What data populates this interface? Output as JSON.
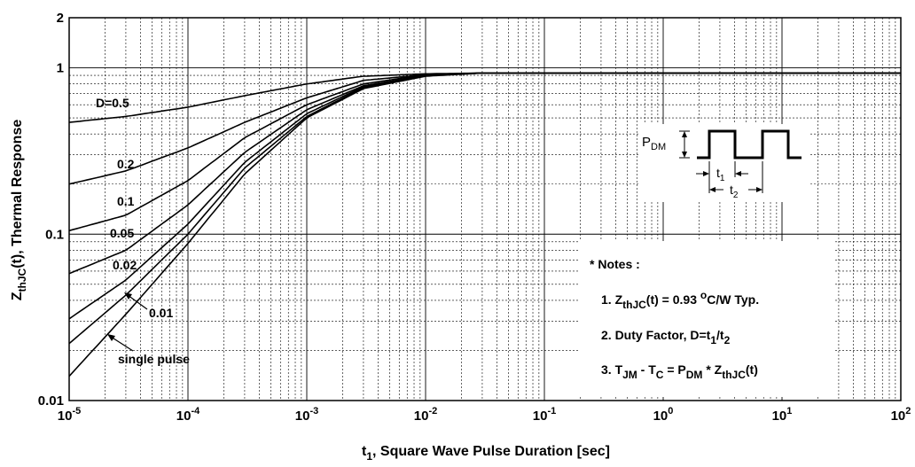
{
  "chart_data": {
    "type": "line",
    "title": "",
    "xlabel": {
      "main": "t",
      "sub": "1",
      "rest": ", Square Wave Pulse Duration [sec]"
    },
    "ylabel": {
      "main": "Z",
      "sub": "thJC",
      "rest": "(t), Thermal Response"
    },
    "x_scale": "log",
    "y_scale": "log",
    "xlim": [
      1e-05,
      100
    ],
    "ylim": [
      0.01,
      2
    ],
    "grid": true,
    "x_ticks": [
      {
        "value": 1e-05,
        "base": "10",
        "exp": "-5"
      },
      {
        "value": 0.0001,
        "base": "10",
        "exp": "-4"
      },
      {
        "value": 0.001,
        "base": "10",
        "exp": "-3"
      },
      {
        "value": 0.01,
        "base": "10",
        "exp": "-2"
      },
      {
        "value": 0.1,
        "base": "10",
        "exp": "-1"
      },
      {
        "value": 1,
        "base": "10",
        "exp": "0"
      },
      {
        "value": 10,
        "base": "10",
        "exp": "1"
      },
      {
        "value": 100,
        "base": "10",
        "exp": "2"
      }
    ],
    "y_ticks": [
      {
        "value": 0.01,
        "label": "0.01"
      },
      {
        "value": 0.1,
        "label": "0.1"
      },
      {
        "value": 1,
        "label": "1"
      },
      {
        "value": 2,
        "label": "2"
      }
    ],
    "series": [
      {
        "name": "D=0.5",
        "x": [
          1e-05,
          3e-05,
          0.0001,
          0.0003,
          0.001,
          0.003,
          0.01,
          0.03,
          100
        ],
        "y": [
          0.47,
          0.51,
          0.58,
          0.68,
          0.8,
          0.89,
          0.92,
          0.93,
          0.93
        ]
      },
      {
        "name": "0.2",
        "x": [
          1e-05,
          3e-05,
          0.0001,
          0.0003,
          0.001,
          0.003,
          0.01,
          0.03,
          100
        ],
        "y": [
          0.2,
          0.24,
          0.33,
          0.47,
          0.66,
          0.84,
          0.91,
          0.93,
          0.93
        ]
      },
      {
        "name": "0.1",
        "x": [
          1e-05,
          3e-05,
          0.0001,
          0.0003,
          0.001,
          0.003,
          0.01,
          0.03,
          100
        ],
        "y": [
          0.105,
          0.13,
          0.21,
          0.38,
          0.6,
          0.8,
          0.91,
          0.93,
          0.93
        ]
      },
      {
        "name": "0.05",
        "x": [
          1e-05,
          3e-05,
          0.0001,
          0.0003,
          0.001,
          0.003,
          0.01,
          0.03,
          100
        ],
        "y": [
          0.058,
          0.08,
          0.15,
          0.31,
          0.56,
          0.78,
          0.9,
          0.93,
          0.93
        ]
      },
      {
        "name": "0.02",
        "x": [
          1e-05,
          3e-05,
          0.0001,
          0.0003,
          0.001,
          0.003,
          0.01,
          0.03,
          100
        ],
        "y": [
          0.031,
          0.053,
          0.115,
          0.27,
          0.53,
          0.77,
          0.9,
          0.93,
          0.93
        ]
      },
      {
        "name": "0.01",
        "x": [
          1e-05,
          3e-05,
          0.0001,
          0.0003,
          0.001,
          0.003,
          0.01,
          0.03,
          100
        ],
        "y": [
          0.022,
          0.043,
          0.1,
          0.25,
          0.51,
          0.76,
          0.9,
          0.93,
          0.93
        ]
      },
      {
        "name": "single pulse",
        "x": [
          1e-05,
          3e-05,
          0.0001,
          0.0003,
          0.001,
          0.003,
          0.01,
          0.03,
          100
        ],
        "y": [
          0.014,
          0.033,
          0.088,
          0.23,
          0.5,
          0.75,
          0.89,
          0.93,
          0.93
        ]
      }
    ],
    "annotations": {
      "notes_title": "* Notes :",
      "note1": {
        "prefix": "1. Z",
        "sub": "thJC",
        "mid": "(t) = 0.93 ",
        "sup": "o",
        "suffix": "C/W Typ."
      },
      "note2": {
        "prefix": "2. Duty Factor, D=t",
        "sub1": "1",
        "mid": "/t",
        "sub2": "2"
      },
      "note3": {
        "prefix": "3. T",
        "sub1": "JM",
        "mid1": " - T",
        "sub2": "C",
        "mid2": " = P",
        "sub3": "DM",
        "mid3": " * Z",
        "sub4": "thJC",
        "suffix": "(t)"
      },
      "pulse_pdm": {
        "main": "P",
        "sub": "DM"
      },
      "pulse_t1": {
        "main": "t",
        "sub": "1"
      },
      "pulse_t2": {
        "main": "t",
        "sub": "2"
      }
    }
  }
}
